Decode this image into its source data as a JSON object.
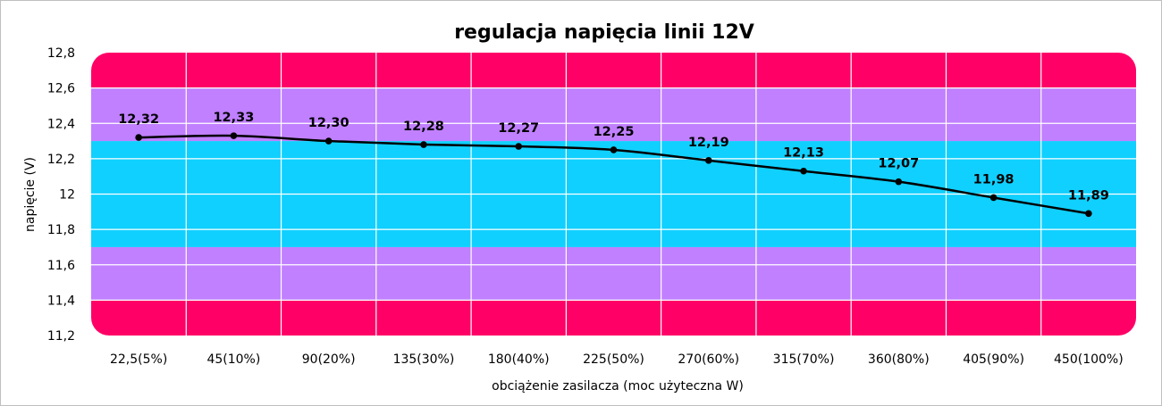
{
  "chart_data": {
    "type": "line",
    "title": "regulacja napięcia linii 12V",
    "xlabel": "obciążenie zasilacza (moc użyteczna W)",
    "ylabel": "napięcie (V)",
    "categories": [
      "22,5(5%)",
      "45(10%)",
      "90(20%)",
      "135(30%)",
      "180(40%)",
      "225(50%)",
      "270(60%)",
      "315(70%)",
      "360(80%)",
      "405(90%)",
      "450(100%)"
    ],
    "values": [
      12.32,
      12.33,
      12.3,
      12.28,
      12.27,
      12.25,
      12.19,
      12.13,
      12.07,
      11.98,
      11.89
    ],
    "data_labels": [
      "12,32",
      "12,33",
      "12,30",
      "12,28",
      "12,27",
      "12,25",
      "12,19",
      "12,13",
      "12,07",
      "11,98",
      "11,89"
    ],
    "ylim": [
      11.2,
      12.8
    ],
    "y_ticks": [
      11.2,
      11.4,
      11.6,
      11.8,
      12.0,
      12.2,
      12.4,
      12.6,
      12.8
    ],
    "y_tick_labels": [
      "11,2",
      "11,4",
      "11,6",
      "11,8",
      "12",
      "12,2",
      "12,4",
      "12,6",
      "12,8"
    ],
    "grid": true,
    "legend": "none",
    "bands": [
      {
        "from": 11.2,
        "to": 11.4,
        "color": "#ff0066"
      },
      {
        "from": 11.4,
        "to": 11.7,
        "color": "#c080ff"
      },
      {
        "from": 11.7,
        "to": 12.3,
        "color": "#10d0ff"
      },
      {
        "from": 12.3,
        "to": 12.6,
        "color": "#c080ff"
      },
      {
        "from": 12.6,
        "to": 12.8,
        "color": "#ff0066"
      }
    ],
    "line_color": "#000000",
    "grid_color": "#ffffff"
  }
}
